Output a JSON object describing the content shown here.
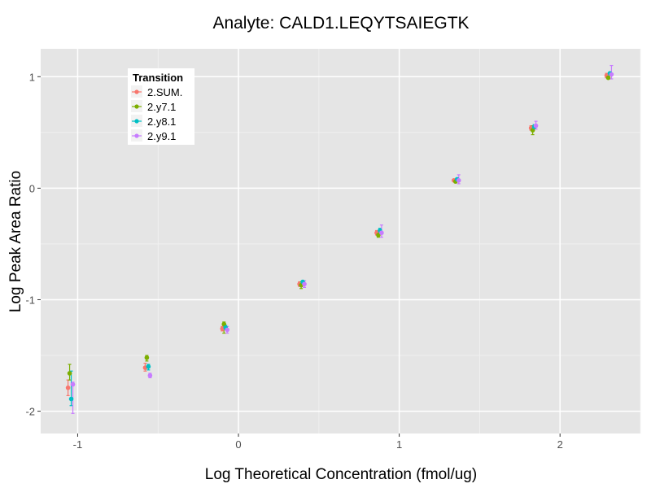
{
  "chart_data": {
    "type": "scatter",
    "title": "Analyte: CALD1.LEQYTSAIEGTK",
    "xlabel": "Log Theoretical Concentration (fmol/ug)",
    "ylabel": "Log Peak Area Ratio",
    "xlim": [
      -1.23,
      2.5
    ],
    "ylim": [
      -2.2,
      1.25
    ],
    "x_ticks": [
      -1,
      0,
      1,
      2
    ],
    "x_tick_labels": [
      "-1",
      "0",
      "1",
      "2"
    ],
    "y_ticks": [
      -2,
      -1,
      0,
      1
    ],
    "y_tick_labels": [
      "-2",
      "-1",
      "0",
      "1"
    ],
    "grid": true,
    "legend": {
      "title": "Transition",
      "placement": "top-left"
    },
    "series": [
      {
        "name": "2.SUM.",
        "color": "#F8766D",
        "points": [
          {
            "x": -1.06,
            "y": -1.79,
            "lo": -1.86,
            "hi": -1.72
          },
          {
            "x": -0.58,
            "y": -1.61,
            "lo": -1.64,
            "hi": -1.57
          },
          {
            "x": -0.1,
            "y": -1.26,
            "lo": -1.28,
            "hi": -1.24
          },
          {
            "x": 0.38,
            "y": -0.86,
            "lo": -0.88,
            "hi": -0.84
          },
          {
            "x": 0.86,
            "y": -0.4,
            "lo": -0.42,
            "hi": -0.38
          },
          {
            "x": 1.34,
            "y": 0.07,
            "lo": 0.06,
            "hi": 0.08
          },
          {
            "x": 1.82,
            "y": 0.54,
            "lo": 0.52,
            "hi": 0.56
          },
          {
            "x": 2.29,
            "y": 1.01,
            "lo": 0.99,
            "hi": 1.03
          }
        ]
      },
      {
        "name": "2.y7.1",
        "color": "#7CAE00",
        "points": [
          {
            "x": -1.05,
            "y": -1.66,
            "lo": -1.72,
            "hi": -1.58
          },
          {
            "x": -0.57,
            "y": -1.52,
            "lo": -1.55,
            "hi": -1.5
          },
          {
            "x": -0.09,
            "y": -1.22,
            "lo": -1.3,
            "hi": -1.2
          },
          {
            "x": 0.39,
            "y": -0.87,
            "lo": -0.9,
            "hi": -0.84
          },
          {
            "x": 0.87,
            "y": -0.42,
            "lo": -0.44,
            "hi": -0.4
          },
          {
            "x": 1.35,
            "y": 0.06,
            "lo": 0.05,
            "hi": 0.07
          },
          {
            "x": 1.83,
            "y": 0.52,
            "lo": 0.48,
            "hi": 0.56
          },
          {
            "x": 2.3,
            "y": 0.99,
            "lo": 0.98,
            "hi": 1.01
          }
        ]
      },
      {
        "name": "2.y8.1",
        "color": "#00BFC4",
        "points": [
          {
            "x": -1.04,
            "y": -1.89,
            "lo": -1.95,
            "hi": -1.64
          },
          {
            "x": -0.56,
            "y": -1.6,
            "lo": -1.63,
            "hi": -1.58
          },
          {
            "x": -0.08,
            "y": -1.25,
            "lo": -1.27,
            "hi": -1.23
          },
          {
            "x": 0.4,
            "y": -0.84,
            "lo": -0.86,
            "hi": -0.83
          },
          {
            "x": 0.88,
            "y": -0.38,
            "lo": -0.4,
            "hi": -0.36
          },
          {
            "x": 1.36,
            "y": 0.08,
            "lo": 0.07,
            "hi": 0.09
          },
          {
            "x": 1.84,
            "y": 0.55,
            "lo": 0.54,
            "hi": 0.57
          },
          {
            "x": 2.31,
            "y": 1.03,
            "lo": 1.02,
            "hi": 1.04
          }
        ]
      },
      {
        "name": "2.y9.1",
        "color": "#C77CFF",
        "points": [
          {
            "x": -1.03,
            "y": -1.76,
            "lo": -2.02,
            "hi": -1.74
          },
          {
            "x": -0.55,
            "y": -1.68,
            "lo": -1.7,
            "hi": -1.66
          },
          {
            "x": -0.07,
            "y": -1.27,
            "lo": -1.3,
            "hi": -1.24
          },
          {
            "x": 0.41,
            "y": -0.86,
            "lo": -0.89,
            "hi": -0.83
          },
          {
            "x": 0.89,
            "y": -0.4,
            "lo": -0.44,
            "hi": -0.33
          },
          {
            "x": 1.37,
            "y": 0.07,
            "lo": 0.04,
            "hi": 0.12
          },
          {
            "x": 1.85,
            "y": 0.56,
            "lo": 0.53,
            "hi": 0.6
          },
          {
            "x": 2.32,
            "y": 1.02,
            "lo": 0.98,
            "hi": 1.1
          }
        ]
      }
    ]
  }
}
